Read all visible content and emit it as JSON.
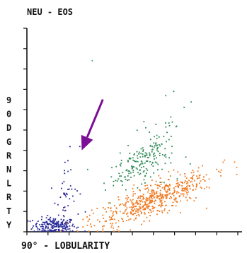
{
  "chart_data": {
    "type": "scatter",
    "title": "NEU - EOS",
    "xlabel": "90° - LOBULARITY",
    "ylabel_chars": [
      "9",
      "0",
      "D",
      "G",
      "R",
      "N",
      "L",
      "R",
      "T",
      "Y"
    ],
    "xlim": [
      0,
      100
    ],
    "ylim": [
      0,
      100
    ],
    "grid": false,
    "legend": "none",
    "series": [
      {
        "color": "#2a2a9a",
        "clusters": [
          {
            "count": 190,
            "cx": 13,
            "cy": 3,
            "sx": 5,
            "sy": 2
          },
          {
            "count": 38,
            "cx": 18,
            "cy": 12,
            "sx": 3.5,
            "sy": 8
          },
          {
            "count": 14,
            "cx": 20,
            "cy": 28,
            "sx": 2.5,
            "sy": 8
          }
        ]
      },
      {
        "color": "#2e8b57",
        "clusters": [
          {
            "count": 160,
            "cx": 55,
            "cy": 34,
            "sx": 7,
            "sy": 5
          },
          {
            "count": 40,
            "cx": 65,
            "cy": 45,
            "sx": 9,
            "sy": 9
          }
        ]
      },
      {
        "color": "#f07a20",
        "clusters": [
          {
            "count": 540,
            "cx": 60,
            "cy": 16,
            "sx": 14,
            "sy": 4
          }
        ]
      },
      {
        "color": "#33aa55",
        "clusters": [
          {
            "count": 1,
            "cx": 31,
            "cy": 84,
            "sx": 0,
            "sy": 0
          }
        ]
      }
    ],
    "annotation": {
      "type": "arrow",
      "color": "#7a0f95",
      "from": [
        36,
        65
      ],
      "to": [
        26,
        40
      ]
    }
  }
}
